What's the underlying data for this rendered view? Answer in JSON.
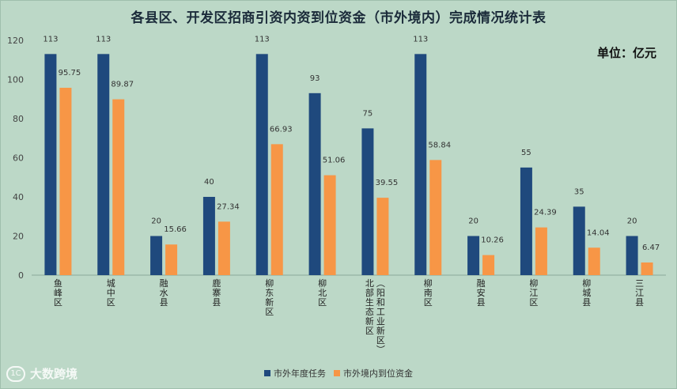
{
  "chart_data": {
    "type": "bar",
    "title": "各县区、开发区招商引资内资到位资金（市外境内）完成情况统计表",
    "unit_label": "单位：亿元",
    "ylim": [
      0,
      120
    ],
    "yticks": [
      0,
      20,
      40,
      60,
      80,
      100,
      120
    ],
    "grid": false,
    "legend_position": "bottom",
    "categories": [
      "鱼峰区",
      "城中区",
      "融水县",
      "鹿寨县",
      "柳东新区",
      "柳北区",
      "北部生态新区（阳和工业新区）",
      "柳南区",
      "融安县",
      "柳江区",
      "柳城县",
      "三江县"
    ],
    "series": [
      {
        "name": "市外年度任务",
        "color": "#1f497d",
        "values": [
          113,
          113,
          20,
          40,
          113,
          93,
          75,
          113,
          20,
          55,
          35,
          20
        ]
      },
      {
        "name": "市外境内到位资金",
        "color": "#f79646",
        "values": [
          95.75,
          89.87,
          15.66,
          27.34,
          66.93,
          51.06,
          39.55,
          58.84,
          10.26,
          24.39,
          14.04,
          6.47
        ]
      }
    ]
  },
  "watermark": {
    "logo_text": "1C",
    "text": "大数跨境"
  }
}
